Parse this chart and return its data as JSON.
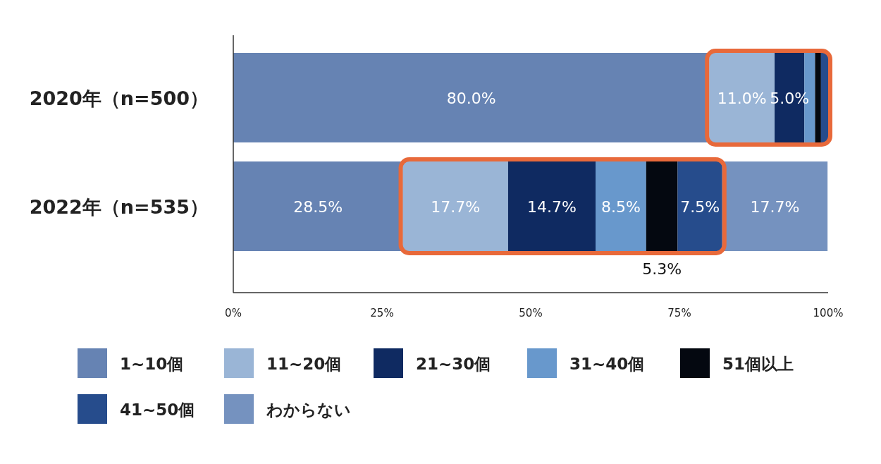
{
  "chart_data": {
    "type": "bar",
    "orientation": "horizontal",
    "stacked": true,
    "legend": "bottom",
    "grid": false,
    "categories": [
      "2020年（n=500）",
      "2022年（n=535）"
    ],
    "xlim": [
      0,
      100
    ],
    "xticks": [
      {
        "value": 0,
        "label": "0%"
      },
      {
        "value": 25,
        "label": "25%"
      },
      {
        "value": 50,
        "label": "50%"
      },
      {
        "value": 75,
        "label": "75%"
      },
      {
        "value": 100,
        "label": "100%"
      }
    ],
    "series": [
      {
        "name": "1~10個",
        "color": "#6683b3",
        "values": [
          80.0,
          28.5
        ],
        "value_labels": [
          "80.0%",
          "28.5%"
        ]
      },
      {
        "name": "11~20個",
        "color": "#9ab5d6",
        "values": [
          11.0,
          17.7
        ],
        "value_labels": [
          "11.0%",
          "17.7%"
        ]
      },
      {
        "name": "21~30個",
        "color": "#0f2a61",
        "values": [
          5.0,
          14.7
        ],
        "value_labels": [
          "5.0%",
          "14.7%"
        ]
      },
      {
        "name": "31~40個",
        "color": "#6898cc",
        "values": [
          1.8,
          8.5
        ],
        "value_labels": [
          null,
          "8.5%"
        ]
      },
      {
        "name": "51個以上",
        "color": "#040810",
        "values": [
          1.0,
          5.3
        ],
        "value_labels": [
          null,
          null
        ]
      },
      {
        "name": "41~50個",
        "color": "#264c8c",
        "values": [
          1.2,
          7.5
        ],
        "value_labels": [
          null,
          "7.5%"
        ]
      },
      {
        "name": "わからない",
        "color": "#7592bf",
        "values": [
          null,
          17.7
        ],
        "value_labels": [
          null,
          "17.7%"
        ]
      }
    ],
    "annotations": [
      {
        "text": "5.3%",
        "x": 72.05,
        "y": "2022年（n=535）"
      }
    ]
  }
}
